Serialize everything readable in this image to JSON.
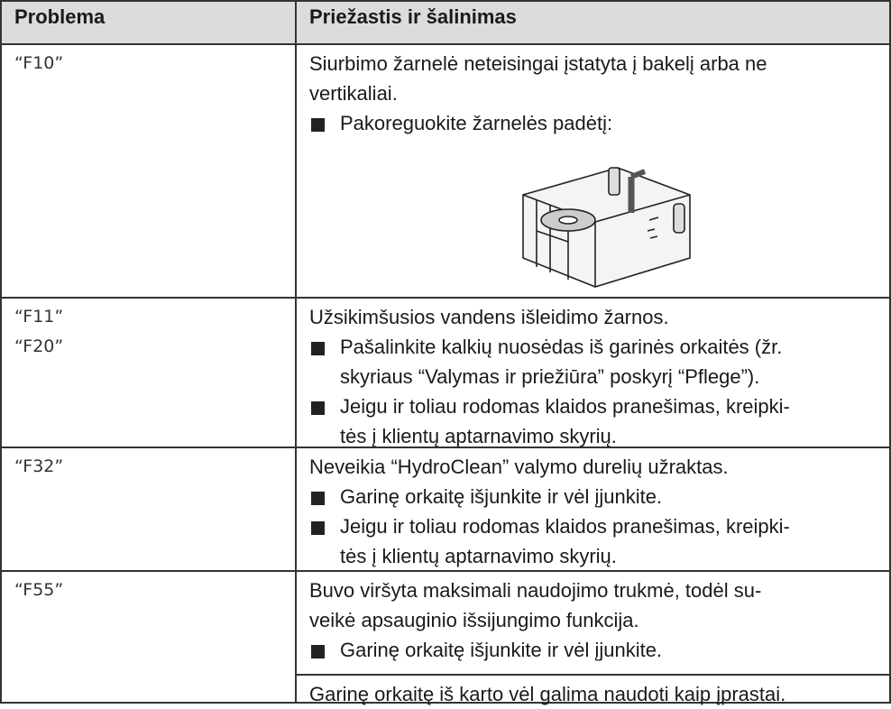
{
  "header": {
    "problem": "Problema",
    "cause": "Priežastis ir šalinimas"
  },
  "rows": [
    {
      "problem": [
        "“F10”"
      ],
      "intro": [
        "Siurbimo žarnelė neteisingai įstatyta į bakelį arba ne",
        "vertikaliai."
      ],
      "bullets": [
        [
          "Pakoreguokite žarnelės padėtį:"
        ]
      ]
    },
    {
      "problem": [
        "“F11”",
        "“F20”"
      ],
      "intro": [
        "Užsikimšusios vandens išleidimo žarnos."
      ],
      "bullets": [
        [
          "Pašalinkite kalkių nuosėdas iš garinės orkaitės (žr.",
          "skyriaus “Valymas ir priežiūra” poskyrį “Pflege”)."
        ],
        [
          "Jeigu ir toliau rodomas klaidos pranešimas, kreipki-",
          "tės į klientų aptarnavimo skyrių."
        ]
      ]
    },
    {
      "problem": [
        "“F32”"
      ],
      "intro": [
        "Neveikia “HydroClean” valymo durelių užraktas."
      ],
      "bullets": [
        [
          "Garinę orkaitę išjunkite ir vėl įjunkite."
        ],
        [
          "Jeigu ir toliau rodomas klaidos pranešimas, kreipki-",
          "tės į klientų aptarnavimo skyrių."
        ]
      ]
    },
    {
      "problem": [
        "“F55”"
      ],
      "intro": [
        "Buvo viršyta maksimali naudojimo trukmė, todėl su-",
        "veikė apsauginio išsijungimo funkcija."
      ],
      "bullets": [
        [
          "Garinę orkaitę išjunkite ir vėl įjunkite."
        ]
      ],
      "outro": [
        "Garinę orkaitę iš karto vėl galima naudoti kaip įprastai."
      ]
    }
  ]
}
